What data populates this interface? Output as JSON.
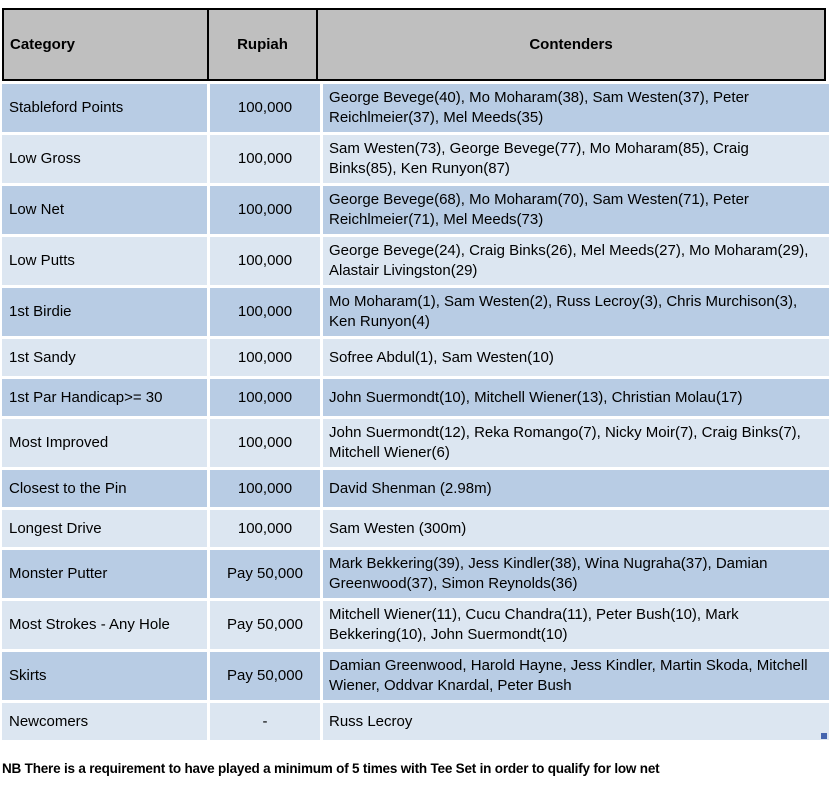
{
  "table": {
    "headers": [
      "Category",
      "Rupiah",
      "Contenders"
    ],
    "rows": [
      {
        "category": "Stableford Points",
        "rupiah": "100,000",
        "contenders": "George Bevege(40), Mo Moharam(38), Sam Westen(37), Peter Reichlmeier(37), Mel Meeds(35)"
      },
      {
        "category": "Low Gross",
        "rupiah": "100,000",
        "contenders": "Sam Westen(73), George Bevege(77), Mo Moharam(85), Craig Binks(85), Ken Runyon(87)"
      },
      {
        "category": "Low Net",
        "rupiah": "100,000",
        "contenders": "George Bevege(68), Mo Moharam(70), Sam Westen(71), Peter Reichlmeier(71), Mel Meeds(73)"
      },
      {
        "category": "Low Putts",
        "rupiah": "100,000",
        "contenders": "George Bevege(24), Craig Binks(26), Mel Meeds(27), Mo Moharam(29), Alastair Livingston(29)"
      },
      {
        "category": "1st Birdie",
        "rupiah": "100,000",
        "contenders": "Mo Moharam(1), Sam Westen(2), Russ Lecroy(3), Chris Murchison(3), Ken Runyon(4)"
      },
      {
        "category": "1st Sandy",
        "rupiah": "100,000",
        "contenders": "Sofree Abdul(1), Sam Westen(10)"
      },
      {
        "category": "1st Par Handicap>= 30",
        "rupiah": "100,000",
        "contenders": "John Suermondt(10), Mitchell Wiener(13), Christian Molau(17)"
      },
      {
        "category": "Most Improved",
        "rupiah": "100,000",
        "contenders": "John Suermondt(12), Reka Romango(7), Nicky Moir(7), Craig Binks(7), Mitchell Wiener(6)"
      },
      {
        "category": "Closest to the Pin",
        "rupiah": "100,000",
        "contenders": "David Shenman (2.98m)"
      },
      {
        "category": "Longest Drive",
        "rupiah": "100,000",
        "contenders": "Sam Westen (300m)"
      },
      {
        "category": "Monster Putter",
        "rupiah": "Pay 50,000",
        "contenders": "Mark Bekkering(39), Jess Kindler(38), Wina Nugraha(37), Damian Greenwood(37), Simon Reynolds(36)"
      },
      {
        "category": "Most Strokes - Any Hole",
        "rupiah": "Pay 50,000",
        "contenders": "Mitchell Wiener(11), Cucu Chandra(11), Peter Bush(10), Mark Bekkering(10), John Suermondt(10)"
      },
      {
        "category": "Skirts",
        "rupiah": "Pay 50,000",
        "contenders": "Damian Greenwood, Harold Hayne, Jess Kindler, Martin Skoda, Mitchell Wiener, Oddvar Knardal, Peter Bush"
      },
      {
        "category": "Newcomers",
        "rupiah": "-",
        "contenders": "Russ Lecroy"
      }
    ]
  },
  "note": "NB There is a requirement to have played a minimum of 5 times with Tee Set in order to qualify for low net",
  "colors": {
    "header_bg": "#BFBFBF",
    "row_dark": "#B8CCE4",
    "row_light": "#DCE6F1",
    "border_black": "#000000",
    "fill_handle": "#4464AE"
  }
}
